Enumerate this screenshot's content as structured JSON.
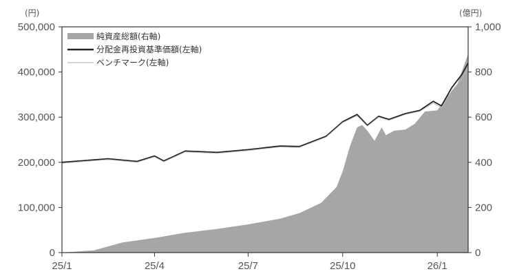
{
  "chart_data": {
    "type": "area",
    "x_ticks": [
      "25/1",
      "25/4",
      "25/7",
      "25/10",
      "26/1"
    ],
    "y_left": {
      "unit": "(円)",
      "ticks": [
        "500,000",
        "400,000",
        "300,000",
        "200,000",
        "100,000",
        "0"
      ],
      "ylim": [
        0,
        500000
      ]
    },
    "y_right": {
      "unit": "(億円)",
      "ticks": [
        "1,000",
        "800",
        "600",
        "400",
        "200",
        "0"
      ],
      "ylim": [
        0,
        1000
      ]
    },
    "xlim": [
      "2025-01-01",
      "2026-01-31"
    ],
    "legend_position": "top-left",
    "colors": {
      "net_assets": "#a6a6a6",
      "nav": "#222222",
      "benchmark": "#bbbbbb",
      "axis": "#333333"
    },
    "series": [
      {
        "name": "純資産総額(右軸)",
        "axis": "right",
        "style": "area",
        "points": [
          [
            "2025-01-01",
            0
          ],
          [
            "2025-02-01",
            10
          ],
          [
            "2025-03-01",
            45
          ],
          [
            "2025-04-01",
            65
          ],
          [
            "2025-05-01",
            88
          ],
          [
            "2025-06-01",
            105
          ],
          [
            "2025-07-01",
            125
          ],
          [
            "2025-08-01",
            150
          ],
          [
            "2025-08-20",
            175
          ],
          [
            "2025-09-10",
            220
          ],
          [
            "2025-09-25",
            290
          ],
          [
            "2025-10-01",
            360
          ],
          [
            "2025-10-08",
            470
          ],
          [
            "2025-10-15",
            555
          ],
          [
            "2025-10-20",
            565
          ],
          [
            "2025-10-25",
            540
          ],
          [
            "2025-11-01",
            495
          ],
          [
            "2025-11-08",
            555
          ],
          [
            "2025-11-12",
            520
          ],
          [
            "2025-11-20",
            540
          ],
          [
            "2025-12-01",
            545
          ],
          [
            "2025-12-10",
            570
          ],
          [
            "2025-12-20",
            625
          ],
          [
            "2026-01-01",
            630
          ],
          [
            "2026-01-10",
            690
          ],
          [
            "2026-01-20",
            740
          ],
          [
            "2026-01-31",
            880
          ]
        ]
      },
      {
        "name": "分配金再投資基準価額(左軸)",
        "axis": "left",
        "style": "line",
        "points": [
          [
            "2025-01-01",
            200000
          ],
          [
            "2025-02-15",
            208000
          ],
          [
            "2025-03-15",
            202000
          ],
          [
            "2025-04-01",
            214000
          ],
          [
            "2025-04-10",
            203000
          ],
          [
            "2025-05-01",
            225000
          ],
          [
            "2025-06-01",
            222000
          ],
          [
            "2025-07-01",
            228000
          ],
          [
            "2025-08-01",
            236000
          ],
          [
            "2025-08-20",
            235000
          ],
          [
            "2025-09-15",
            258000
          ],
          [
            "2025-10-01",
            290000
          ],
          [
            "2025-10-15",
            306000
          ],
          [
            "2025-10-25",
            282000
          ],
          [
            "2025-11-05",
            302000
          ],
          [
            "2025-11-15",
            295000
          ],
          [
            "2025-12-01",
            308000
          ],
          [
            "2025-12-15",
            315000
          ],
          [
            "2025-12-28",
            335000
          ],
          [
            "2026-01-05",
            325000
          ],
          [
            "2026-01-15",
            365000
          ],
          [
            "2026-01-25",
            395000
          ],
          [
            "2026-01-31",
            420000
          ]
        ]
      },
      {
        "name": "ベンチマーク(左軸)",
        "axis": "left",
        "style": "thin-line",
        "points": [
          [
            "2025-01-01",
            198000
          ],
          [
            "2025-02-15",
            206000
          ],
          [
            "2025-03-15",
            200000
          ],
          [
            "2025-04-01",
            212000
          ],
          [
            "2025-04-10",
            201000
          ],
          [
            "2025-05-01",
            223000
          ],
          [
            "2025-06-01",
            220000
          ],
          [
            "2025-07-01",
            226000
          ],
          [
            "2025-08-01",
            234000
          ],
          [
            "2025-08-20",
            233000
          ],
          [
            "2025-09-15",
            256000
          ],
          [
            "2025-10-01",
            288000
          ],
          [
            "2025-10-15",
            303000
          ],
          [
            "2025-10-25",
            280000
          ],
          [
            "2025-11-05",
            300000
          ],
          [
            "2025-11-15",
            293000
          ],
          [
            "2025-12-01",
            306000
          ],
          [
            "2025-12-15",
            313000
          ],
          [
            "2025-12-28",
            331000
          ],
          [
            "2026-01-05",
            321000
          ],
          [
            "2026-01-15",
            358000
          ],
          [
            "2026-01-25",
            385000
          ],
          [
            "2026-01-31",
            408000
          ]
        ]
      }
    ]
  }
}
